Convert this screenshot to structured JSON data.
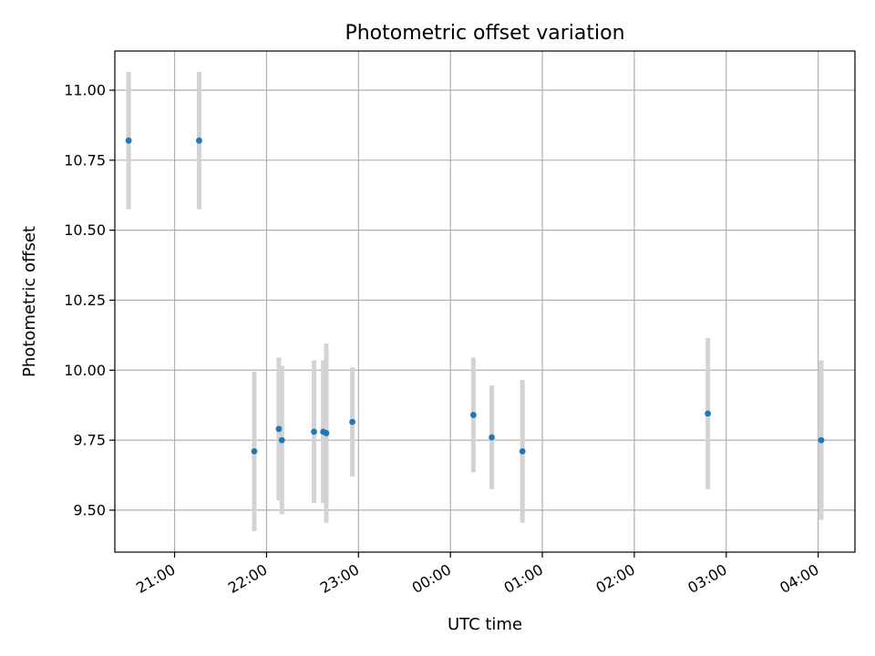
{
  "chart_data": {
    "type": "scatter",
    "title": "Photometric offset variation",
    "xlabel": "UTC time",
    "ylabel": "Photometric offset",
    "x_unit": "UTC time (HH:MM), night spanning midnight",
    "xlim": [
      "20:21",
      "04:24"
    ],
    "ylim": [
      9.35,
      11.14
    ],
    "x_ticks": [
      "21:00",
      "22:00",
      "23:00",
      "00:00",
      "01:00",
      "02:00",
      "03:00",
      "04:00"
    ],
    "y_ticks": [
      9.5,
      9.75,
      10.0,
      10.25,
      10.5,
      10.75,
      11.0
    ],
    "y_tick_labels": [
      "9.50",
      "9.75",
      "10.00",
      "10.25",
      "10.50",
      "10.75",
      "11.00"
    ],
    "grid": true,
    "colors": {
      "point": "#1f77b4",
      "errorbar": "#d3d3d3",
      "grid": "#b0b0b0"
    },
    "series": [
      {
        "points": [
          {
            "x": "20:30",
            "y": 10.82,
            "yerr": 0.245
          },
          {
            "x": "21:16",
            "y": 10.82,
            "yerr": 0.245
          },
          {
            "x": "21:52",
            "y": 9.71,
            "yerr": 0.285
          },
          {
            "x": "22:08",
            "y": 9.79,
            "yerr": 0.255
          },
          {
            "x": "22:10",
            "y": 9.75,
            "yerr": 0.265
          },
          {
            "x": "22:31",
            "y": 9.78,
            "yerr": 0.255
          },
          {
            "x": "22:37",
            "y": 9.78,
            "yerr": 0.255
          },
          {
            "x": "22:39",
            "y": 9.775,
            "yerr": 0.32
          },
          {
            "x": "22:56",
            "y": 9.815,
            "yerr": 0.195
          },
          {
            "x": "00:15",
            "y": 9.84,
            "yerr": 0.205
          },
          {
            "x": "00:27",
            "y": 9.76,
            "yerr": 0.185
          },
          {
            "x": "00:47",
            "y": 9.71,
            "yerr": 0.255
          },
          {
            "x": "02:48",
            "y": 9.845,
            "yerr": 0.27
          },
          {
            "x": "04:02",
            "y": 9.75,
            "yerr": 0.285
          }
        ]
      }
    ]
  }
}
